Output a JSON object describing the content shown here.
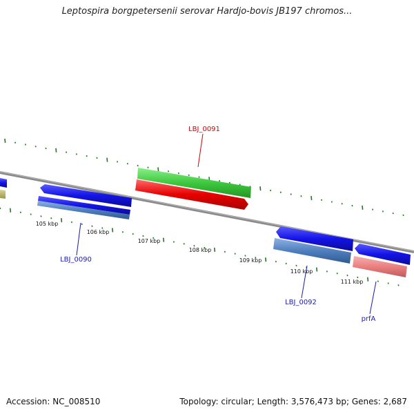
{
  "title": "Leptospira borgpetersenii serovar Hardjo-bovis JB197 chromos...",
  "footer": {
    "accession": "Accession: NC_008510",
    "summary": "Topology: circular; Length: 3,576,473 bp; Genes: 2,687"
  },
  "colors": {
    "backbone": "#8a8a8a",
    "tick": "#1e7a1e",
    "cds_blue": "#1414e6",
    "cds_steel": "#4f7fbf",
    "cds_green": "#3ec83e",
    "cds_red": "#e60000",
    "cds_pink": "#e88080",
    "cds_olive": "#b0ac60",
    "label_red": "#cc0000",
    "label_blue": "#1a1aaa"
  },
  "scale_labels": [
    "105 kbp",
    "106 kbp",
    "107 kbp",
    "108 kbp",
    "109 kbp",
    "110 kbp",
    "111 kbp"
  ],
  "gene_labels": [
    {
      "name": "LBJ_0091",
      "color": "red"
    },
    {
      "name": "LBJ_0090",
      "color": "blue"
    },
    {
      "name": "LBJ_0092",
      "color": "blue"
    },
    {
      "name": "prfA",
      "color": "blue"
    }
  ]
}
